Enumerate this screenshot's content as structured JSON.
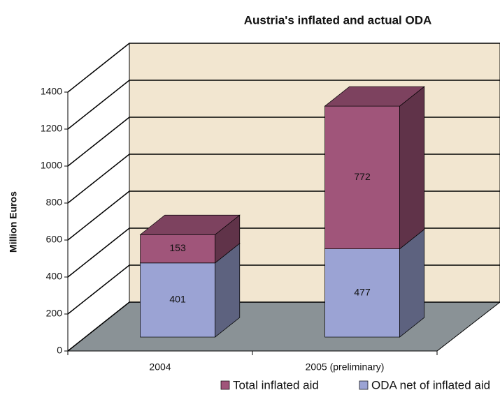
{
  "chart_data": {
    "type": "bar3d_stacked",
    "title": "Austria's inflated and actual ODA",
    "y_label": "Million Euros",
    "categories": [
      "2004",
      "2005  (preliminary)"
    ],
    "series": [
      {
        "name": "Total inflated aid",
        "color": "#a0557a",
        "values": [
          153,
          772
        ]
      },
      {
        "name": "ODA net of inflated aid",
        "color": "#9ba3d4",
        "values": [
          401,
          477
        ]
      }
    ],
    "ylim": [
      0,
      1400
    ],
    "yticks": [
      0,
      200,
      400,
      600,
      800,
      1000,
      1200,
      1400
    ],
    "grid": true
  }
}
